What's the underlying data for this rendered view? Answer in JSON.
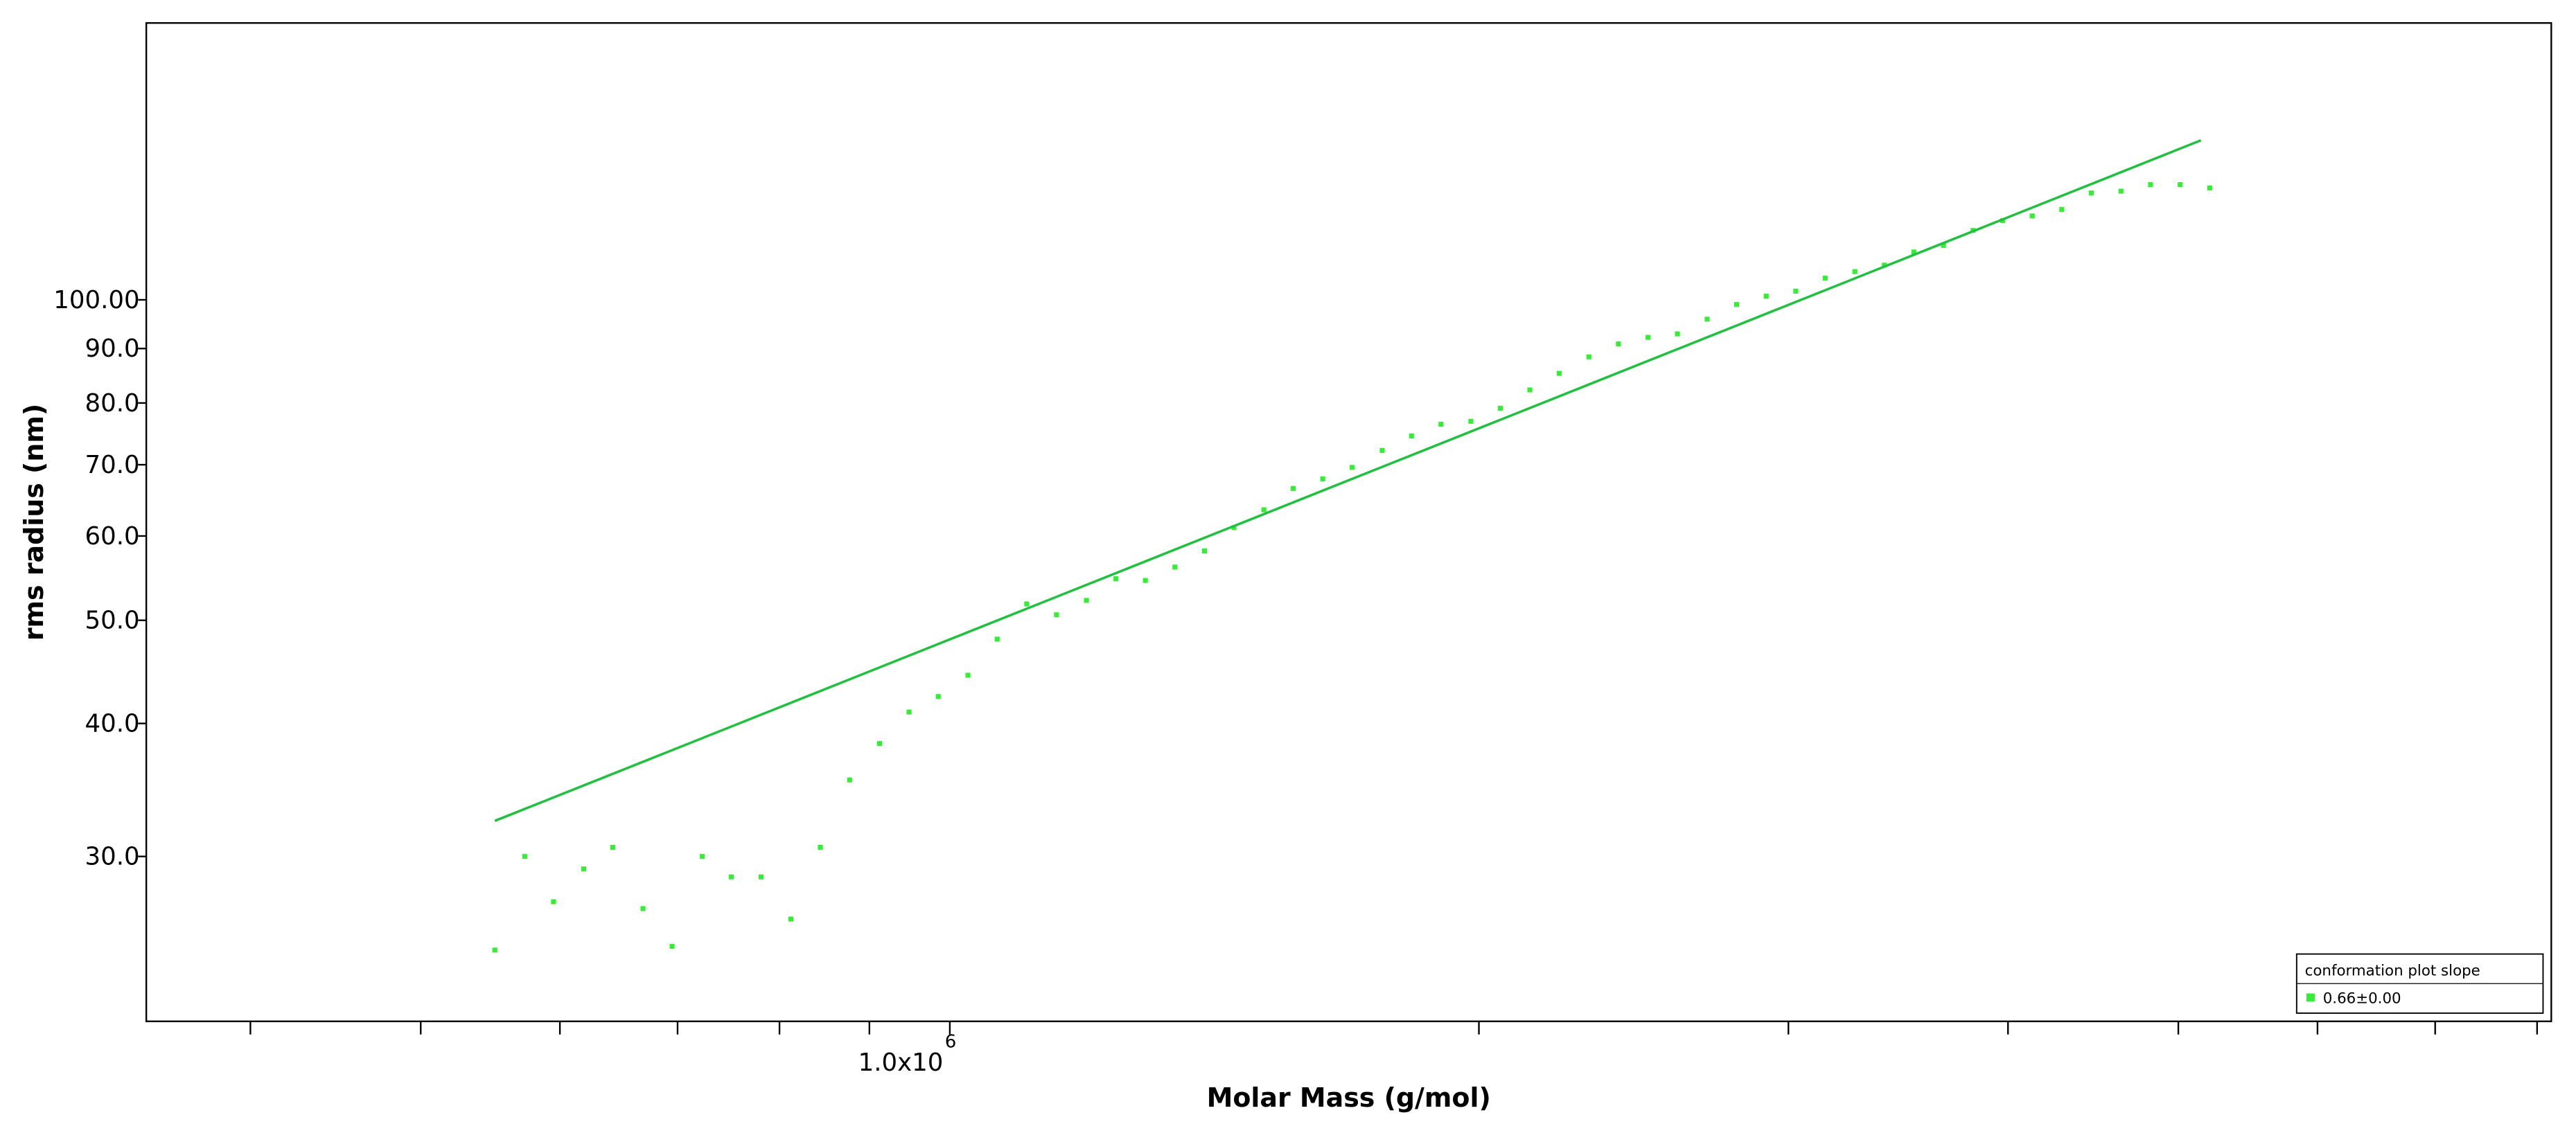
{
  "chart_data": {
    "type": "scatter",
    "x_label": "Molar Mass (g/mol)",
    "y_label": "rms radius (nm)",
    "xlog": true,
    "ylog": true,
    "xlim": [
      349000,
      8150000
    ],
    "ylim": [
      21,
      182
    ],
    "xticks": [
      {
        "value": 1000000,
        "label": "1.0x10",
        "exponent": "6"
      }
    ],
    "xminor_ticks": [
      400000,
      500000,
      600000,
      700000,
      800000,
      900000,
      2000000,
      3000000,
      4000000,
      5000000,
      6000000,
      7000000,
      8000000
    ],
    "yticks": [
      {
        "value": 30,
        "label": "30.0"
      },
      {
        "value": 40,
        "label": "40.0"
      },
      {
        "value": 50,
        "label": "50.0"
      },
      {
        "value": 60,
        "label": "60.0"
      },
      {
        "value": 70,
        "label": "70.0"
      },
      {
        "value": 80,
        "label": "80.0"
      },
      {
        "value": 90,
        "label": "90.0"
      },
      {
        "value": 100,
        "label": "100.00"
      }
    ],
    "legend": {
      "title": "conformation plot slope",
      "position": "lower right"
    },
    "series": [
      {
        "name": "0.66±0.00",
        "color": "#33ee33",
        "x": [
          551000,
          573000,
          595000,
          619000,
          643000,
          669000,
          695000,
          723000,
          751000,
          781000,
          812000,
          844000,
          877000,
          912000,
          948000,
          985000,
          1024000,
          1064000,
          1106000,
          1150000,
          1196000,
          1243000,
          1292000,
          1343000,
          1396000,
          1451000,
          1509000,
          1568000,
          1630000,
          1694000,
          1762000,
          1831000,
          1903000,
          1979000,
          2057000,
          2138000,
          2222000,
          2310000,
          2401000,
          2496000,
          2594000,
          2697000,
          2803000,
          2914000,
          3029000,
          3148000,
          3273000,
          3402000,
          3536000,
          3676000,
          3821000,
          3972000,
          4129000,
          4292000,
          4461000,
          4638000,
          4821000,
          5012000,
          5210000
        ],
        "values": [
          24.5,
          30.0,
          27.2,
          29.2,
          30.6,
          26.8,
          24.7,
          30.0,
          28.7,
          28.7,
          26.2,
          30.6,
          35.4,
          38.3,
          41.0,
          42.4,
          44.4,
          48.0,
          51.8,
          50.6,
          52.2,
          54.7,
          54.5,
          56.1,
          58.1,
          61.1,
          63.5,
          66.5,
          67.9,
          69.6,
          72.2,
          74.5,
          76.4,
          76.9,
          79.1,
          82.3,
          85.3,
          88.4,
          90.9,
          92.2,
          92.9,
          95.9,
          99.0,
          100.8,
          101.9,
          104.8,
          106.3,
          107.8,
          110.9,
          112.5,
          116.2,
          118.7,
          119.9,
          121.6,
          126.0,
          126.5,
          128.3,
          128.3,
          127.4
        ]
      },
      {
        "type": "line",
        "color": "#22c040",
        "x": [
          551000,
          5150000
        ],
        "values": [
          32.4,
          141.2
        ]
      }
    ]
  }
}
